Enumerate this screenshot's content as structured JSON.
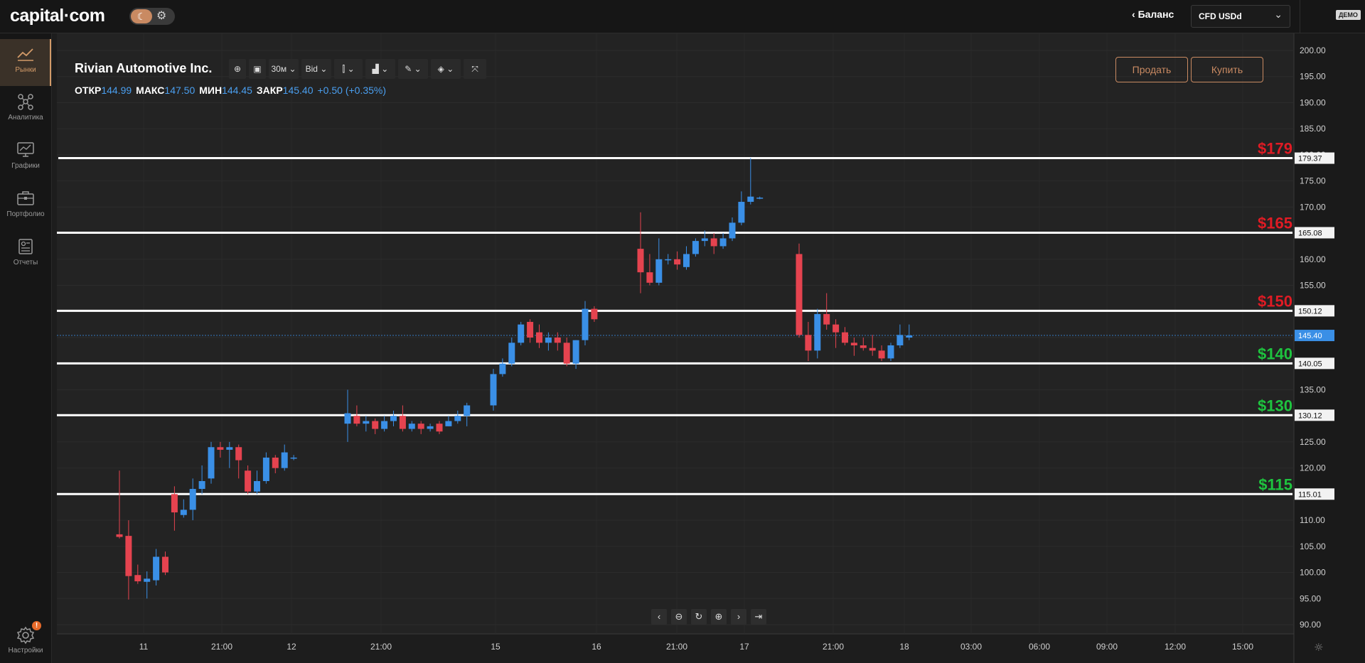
{
  "header": {
    "logo": "capital·com",
    "balance_label": "Баланс",
    "account": "CFD USDd",
    "demo_badge": "ДЕМО"
  },
  "sidebar": {
    "items": [
      {
        "label": "Рынки",
        "icon": "trending-icon",
        "active": true
      },
      {
        "label": "Аналитика",
        "icon": "network-icon",
        "active": false
      },
      {
        "label": "Графики",
        "icon": "chart-monitor-icon",
        "active": false
      },
      {
        "label": "Портфолио",
        "icon": "briefcase-icon",
        "active": false
      },
      {
        "label": "Отчеты",
        "icon": "report-icon",
        "active": false
      }
    ],
    "settings_label": "Настройки",
    "settings_alert": "!"
  },
  "chart": {
    "title": "Rivian Automotive Inc.",
    "toolbar": {
      "timeframe": "30м",
      "price_type": "Bid"
    },
    "ohlc": {
      "open_label": "ОТКР",
      "open": "144.99",
      "high_label": "МАКС",
      "high": "147.50",
      "low_label": "МИН",
      "low": "144.45",
      "close_label": "ЗАКР",
      "close": "145.40",
      "change": "+0.50 (+0.35%)"
    },
    "sell_label": "Продать",
    "buy_label": "Купить"
  },
  "colors": {
    "up": "#3a8fe6",
    "down": "#e5434f",
    "resistance": "#e01b24",
    "support": "#1ec43f",
    "accent": "#c98a62"
  },
  "chart_data": {
    "type": "candlestick",
    "ylim": [
      90,
      200
    ],
    "y_ticks": [
      "200.00",
      "195.00",
      "190.00",
      "185.00",
      "180.00",
      "175.00",
      "170.00",
      "165.00",
      "160.00",
      "155.00",
      "150.00",
      "145.00",
      "140.00",
      "135.00",
      "130.00",
      "125.00",
      "120.00",
      "115.00",
      "110.00",
      "105.00",
      "100.00",
      "95.00",
      "90.00"
    ],
    "x_ticks": [
      "11",
      "21:00",
      "12",
      "21:00",
      "15",
      "16",
      "21:00",
      "17",
      "21:00",
      "18",
      "03:00",
      "06:00",
      "09:00",
      "12:00",
      "15:00"
    ],
    "current_price": "145.40",
    "levels": [
      {
        "value": "179.37",
        "annotation": "$179",
        "kind": "resistance"
      },
      {
        "value": "165.08",
        "annotation": "$165",
        "kind": "resistance"
      },
      {
        "value": "150.12",
        "annotation": "$150",
        "kind": "resistance"
      },
      {
        "value": "140.05",
        "annotation": "$140",
        "kind": "support"
      },
      {
        "value": "130.12",
        "annotation": "$130",
        "kind": "support"
      },
      {
        "value": "115.01",
        "annotation": "$115",
        "kind": "support"
      }
    ],
    "candles": [
      {
        "o": 107.3,
        "h": 119.5,
        "l": 106.5,
        "c": 106.8
      },
      {
        "o": 107.0,
        "h": 110.0,
        "l": 94.8,
        "c": 99.3
      },
      {
        "o": 99.5,
        "h": 101.5,
        "l": 97.8,
        "c": 98.3
      },
      {
        "o": 98.2,
        "h": 100.2,
        "l": 95.0,
        "c": 98.8
      },
      {
        "o": 98.5,
        "h": 104.5,
        "l": 97.5,
        "c": 103.0
      },
      {
        "o": 103.0,
        "h": 104.0,
        "l": 99.5,
        "c": 100.0
      },
      {
        "o": 115.0,
        "h": 116.5,
        "l": 108.0,
        "c": 111.5
      },
      {
        "o": 111.0,
        "h": 114.0,
        "l": 110.5,
        "c": 112.0
      },
      {
        "o": 112.0,
        "h": 118.0,
        "l": 110.0,
        "c": 116.0
      },
      {
        "o": 116.0,
        "h": 120.5,
        "l": 115.0,
        "c": 117.5
      },
      {
        "o": 118.0,
        "h": 125.0,
        "l": 117.0,
        "c": 124.0
      },
      {
        "o": 124.0,
        "h": 125.0,
        "l": 122.0,
        "c": 123.5
      },
      {
        "o": 123.5,
        "h": 125.0,
        "l": 120.0,
        "c": 124.0
      },
      {
        "o": 124.0,
        "h": 124.5,
        "l": 118.0,
        "c": 121.5
      },
      {
        "o": 119.5,
        "h": 120.5,
        "l": 115.0,
        "c": 115.5
      },
      {
        "o": 115.5,
        "h": 119.5,
        "l": 115.0,
        "c": 117.5
      },
      {
        "o": 117.5,
        "h": 123.0,
        "l": 117.0,
        "c": 122.0
      },
      {
        "o": 122.0,
        "h": 122.5,
        "l": 119.0,
        "c": 120.0
      },
      {
        "o": 120.0,
        "h": 124.5,
        "l": 119.5,
        "c": 123.0
      },
      {
        "o": 122.0,
        "h": 122.5,
        "l": 121.5,
        "c": 122.0
      },
      {
        "o": 128.5,
        "h": 135.0,
        "l": 125.0,
        "c": 130.5
      },
      {
        "o": 130.0,
        "h": 132.0,
        "l": 128.0,
        "c": 128.5
      },
      {
        "o": 128.5,
        "h": 130.0,
        "l": 127.0,
        "c": 129.0
      },
      {
        "o": 129.0,
        "h": 129.5,
        "l": 126.5,
        "c": 127.5
      },
      {
        "o": 127.5,
        "h": 130.0,
        "l": 127.0,
        "c": 129.0
      },
      {
        "o": 129.0,
        "h": 131.0,
        "l": 128.0,
        "c": 130.0
      },
      {
        "o": 130.0,
        "h": 132.0,
        "l": 127.0,
        "c": 127.5
      },
      {
        "o": 127.5,
        "h": 129.0,
        "l": 127.0,
        "c": 128.5
      },
      {
        "o": 128.5,
        "h": 129.0,
        "l": 126.5,
        "c": 127.5
      },
      {
        "o": 127.5,
        "h": 128.5,
        "l": 127.0,
        "c": 128.0
      },
      {
        "o": 128.5,
        "h": 129.0,
        "l": 126.5,
        "c": 127.0
      },
      {
        "o": 128.0,
        "h": 130.0,
        "l": 128.0,
        "c": 129.0
      },
      {
        "o": 129.0,
        "h": 131.0,
        "l": 128.5,
        "c": 130.0
      },
      {
        "o": 130.0,
        "h": 132.5,
        "l": 128.0,
        "c": 132.0
      },
      {
        "o": 132.0,
        "h": 139.0,
        "l": 131.0,
        "c": 138.0
      },
      {
        "o": 138.0,
        "h": 141.0,
        "l": 137.5,
        "c": 140.0
      },
      {
        "o": 140.0,
        "h": 145.0,
        "l": 139.5,
        "c": 144.0
      },
      {
        "o": 144.0,
        "h": 148.0,
        "l": 143.5,
        "c": 147.5
      },
      {
        "o": 148.0,
        "h": 148.5,
        "l": 144.0,
        "c": 145.0
      },
      {
        "o": 146.0,
        "h": 147.5,
        "l": 143.0,
        "c": 144.0
      },
      {
        "o": 144.0,
        "h": 146.0,
        "l": 142.5,
        "c": 145.0
      },
      {
        "o": 145.0,
        "h": 146.0,
        "l": 142.5,
        "c": 144.0
      },
      {
        "o": 144.0,
        "h": 145.0,
        "l": 139.5,
        "c": 140.0
      },
      {
        "o": 140.0,
        "h": 144.5,
        "l": 139.0,
        "c": 144.5
      },
      {
        "o": 144.5,
        "h": 152.0,
        "l": 143.5,
        "c": 150.5
      },
      {
        "o": 150.5,
        "h": 151.0,
        "l": 148.0,
        "c": 148.5
      },
      {
        "o": 162.0,
        "h": 169.0,
        "l": 153.5,
        "c": 157.5
      },
      {
        "o": 157.5,
        "h": 161.0,
        "l": 155.0,
        "c": 155.5
      },
      {
        "o": 155.5,
        "h": 164.0,
        "l": 155.0,
        "c": 160.0
      },
      {
        "o": 160.0,
        "h": 161.0,
        "l": 159.0,
        "c": 160.0
      },
      {
        "o": 160.0,
        "h": 161.5,
        "l": 158.0,
        "c": 159.0
      },
      {
        "o": 158.5,
        "h": 162.5,
        "l": 158.0,
        "c": 161.0
      },
      {
        "o": 161.0,
        "h": 164.0,
        "l": 160.5,
        "c": 163.5
      },
      {
        "o": 163.5,
        "h": 165.5,
        "l": 162.5,
        "c": 164.0
      },
      {
        "o": 164.0,
        "h": 165.0,
        "l": 161.0,
        "c": 162.5
      },
      {
        "o": 162.5,
        "h": 165.0,
        "l": 162.0,
        "c": 164.0
      },
      {
        "o": 164.0,
        "h": 168.0,
        "l": 163.5,
        "c": 167.0
      },
      {
        "o": 167.0,
        "h": 173.0,
        "l": 166.5,
        "c": 171.0
      },
      {
        "o": 171.0,
        "h": 179.4,
        "l": 170.5,
        "c": 172.0
      },
      {
        "o": 171.8,
        "h": 172.0,
        "l": 171.5,
        "c": 171.8
      },
      {
        "o": 161.0,
        "h": 163.0,
        "l": 145.0,
        "c": 145.5
      },
      {
        "o": 145.5,
        "h": 148.0,
        "l": 140.5,
        "c": 142.5
      },
      {
        "o": 142.5,
        "h": 150.5,
        "l": 141.0,
        "c": 149.5
      },
      {
        "o": 149.5,
        "h": 153.5,
        "l": 146.5,
        "c": 147.5
      },
      {
        "o": 147.5,
        "h": 148.5,
        "l": 143.0,
        "c": 146.0
      },
      {
        "o": 146.0,
        "h": 147.0,
        "l": 143.5,
        "c": 144.0
      },
      {
        "o": 144.0,
        "h": 145.0,
        "l": 141.5,
        "c": 143.5
      },
      {
        "o": 143.5,
        "h": 145.0,
        "l": 142.5,
        "c": 143.0
      },
      {
        "o": 143.0,
        "h": 145.5,
        "l": 141.5,
        "c": 142.5
      },
      {
        "o": 142.5,
        "h": 143.5,
        "l": 140.5,
        "c": 141.0
      },
      {
        "o": 141.0,
        "h": 144.0,
        "l": 140.5,
        "c": 143.5
      },
      {
        "o": 143.5,
        "h": 147.5,
        "l": 143.0,
        "c": 145.5
      },
      {
        "o": 145.0,
        "h": 147.5,
        "l": 144.5,
        "c": 145.4
      }
    ]
  }
}
